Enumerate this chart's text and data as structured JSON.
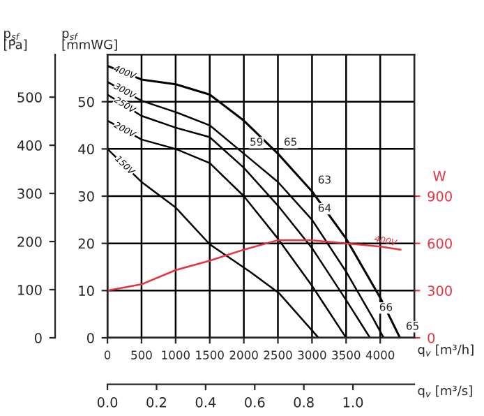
{
  "chart_data": {
    "type": "line",
    "x": [
      0,
      500,
      1000,
      1500,
      2000,
      2500,
      3000,
      3500,
      4000,
      4290
    ],
    "ylabel": "p$_{sf}$\n[mmWG]",
    "y2label": "p$_{sf}$\n[Pa]",
    "y3label": "W",
    "xlabel": "q$_{v}$ [m³/h]",
    "x2label": "q$_{v}$ [m³/s]",
    "xlim": [
      0,
      4500
    ],
    "xticks": [
      0,
      500,
      1000,
      1500,
      2000,
      2500,
      3000,
      3500,
      4000
    ],
    "x2lim": [
      0,
      1.25
    ],
    "x2ticks": [
      {
        "value": 0,
        "label": "0.0"
      },
      0.2,
      0.4,
      0.6,
      0.8,
      {
        "value": 1,
        "label": "1.0"
      }
    ],
    "ylim": [
      0,
      60
    ],
    "yticks": [
      0,
      10,
      20,
      30,
      40,
      50
    ],
    "y2lim": [
      0,
      588.6
    ],
    "y2ticks": [
      0,
      100,
      200,
      300,
      400,
      500
    ],
    "y3lim": [
      0,
      1800
    ],
    "y3ticks": [
      0,
      300,
      600,
      900
    ],
    "grid": true,
    "marker": "none",
    "line_style": "solid",
    "series": [
      {
        "name": "400V",
        "color": "#000000",
        "values": [
          57.6,
          54.7,
          53.7,
          51.5,
          46,
          39,
          31,
          21,
          8.5,
          0
        ]
      },
      {
        "name": "300V",
        "color": "#000000",
        "x": [
          0,
          500,
          1000,
          1500,
          2000,
          2500,
          3000,
          3500,
          3900,
          4050
        ],
        "values": [
          54.2,
          50.2,
          47.8,
          45,
          39,
          33,
          25,
          14,
          4,
          0
        ]
      },
      {
        "name": "250V",
        "color": "#000000",
        "x": [
          0,
          500,
          1000,
          1500,
          2000,
          2500,
          3000,
          3500,
          3850
        ],
        "values": [
          51.5,
          47,
          44.5,
          42.5,
          36,
          28,
          19,
          8,
          0
        ]
      },
      {
        "name": "200V",
        "color": "#000000",
        "x": [
          0,
          500,
          1000,
          1500,
          2000,
          2500,
          3000,
          3500
        ],
        "values": [
          46,
          42,
          40,
          37,
          30,
          21,
          11,
          0
        ]
      },
      {
        "name": "150V",
        "color": "#000000",
        "x": [
          0,
          500,
          1000,
          1500,
          2100,
          2520,
          3095
        ],
        "values": [
          40,
          33,
          27.6,
          19.8,
          13.9,
          9.4,
          0
        ]
      },
      {
        "name": "400V",
        "color": "#e8333f",
        "axis": "y3",
        "x": [
          0,
          500,
          1000,
          1500,
          2000,
          2500,
          3000,
          3500,
          4000,
          4300
        ],
        "values": [
          300,
          340,
          430,
          490,
          560,
          620,
          620,
          600,
          580,
          560
        ]
      }
    ],
    "annotations": [
      {
        "text": "65",
        "x": 2500,
        "y": 39
      },
      {
        "text": "59",
        "x": 2000,
        "y": 39
      },
      {
        "text": "63",
        "x": 3000,
        "y": 31
      },
      {
        "text": "64",
        "x": 3000,
        "y": 25
      },
      {
        "text": "66",
        "x": 3900,
        "y": 4
      },
      {
        "text": "65",
        "x": 4290,
        "y": 0
      }
    ]
  }
}
